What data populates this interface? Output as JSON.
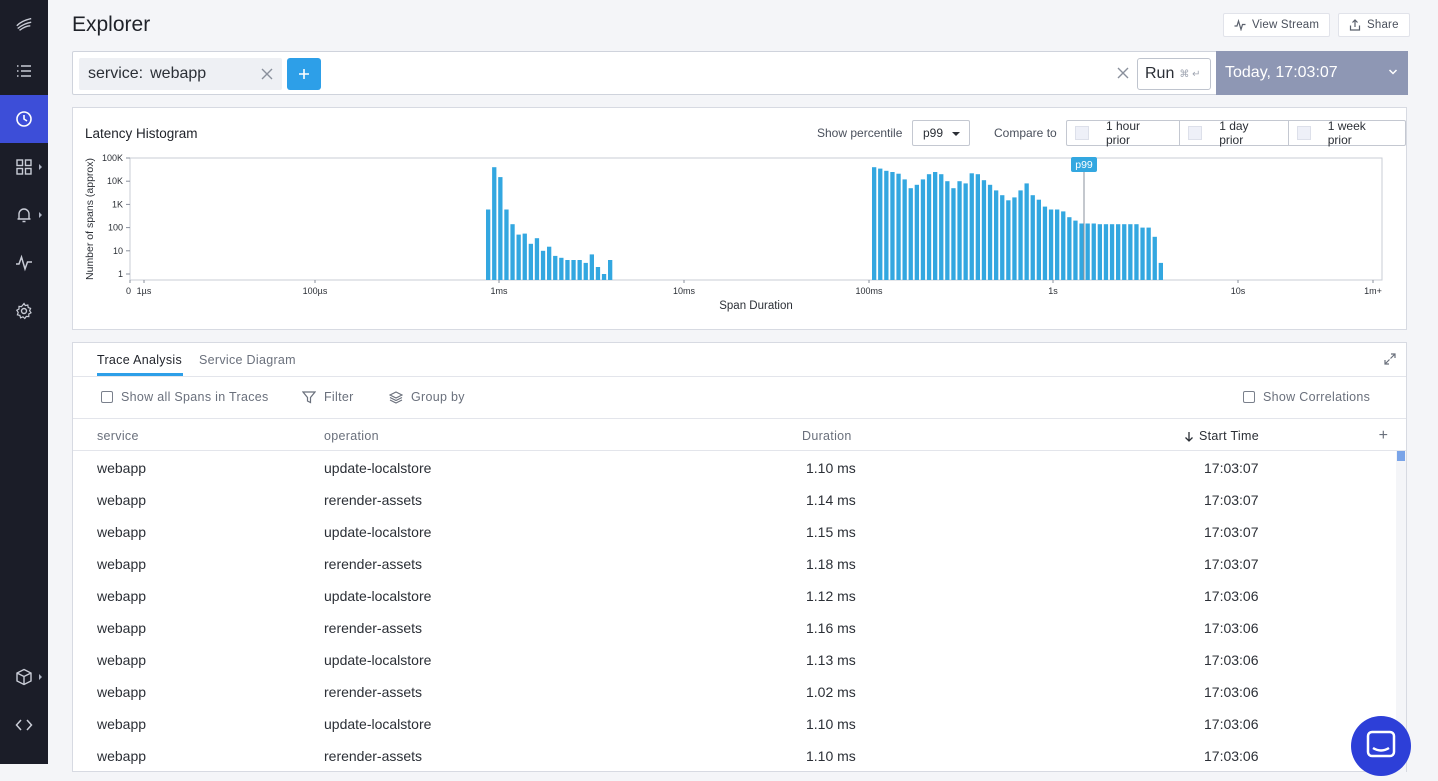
{
  "sidebar": {
    "items": [
      {
        "icon": "logo-icon"
      },
      {
        "icon": "list-icon"
      },
      {
        "icon": "clock-icon",
        "active": true
      },
      {
        "icon": "dashboard-grid-icon"
      },
      {
        "icon": "bell-icon"
      },
      {
        "icon": "pulse-icon"
      },
      {
        "icon": "gear-icon"
      },
      {
        "icon": "package-icon"
      },
      {
        "icon": "code-icon"
      }
    ]
  },
  "header": {
    "title": "Explorer",
    "view_stream_label": "View Stream",
    "share_label": "Share"
  },
  "query": {
    "chip_key": "service:",
    "chip_value": "webapp",
    "run_label": "Run",
    "run_shortcut": "⌘ ↵",
    "time_label": "Today, 17:03:07"
  },
  "histogram": {
    "title": "Latency Histogram",
    "show_percentile_label": "Show percentile",
    "percentile_value": "p99",
    "compare_label": "Compare to",
    "compare_options": [
      "1 hour prior",
      "1 day prior",
      "1 week prior"
    ],
    "marker_label": "p99",
    "bar_color": "#33a7e0"
  },
  "chart_data": {
    "type": "bar",
    "xlabel": "Span Duration",
    "ylabel": "Number of spans (approx)",
    "yscale": "log",
    "y_ticks": [
      "100K",
      "10K",
      "1K",
      "100",
      "10",
      "1"
    ],
    "x_ticks": [
      "0",
      "1µs",
      "100µs",
      "1ms",
      "10ms",
      "100ms",
      "1s",
      "10s",
      "1m+"
    ],
    "marker": {
      "label": "p99",
      "x": "1.6s"
    },
    "groups": [
      {
        "x_start": "800µs",
        "values": [
          600,
          40000,
          15000,
          600,
          140,
          50,
          55,
          20,
          35,
          10,
          15,
          6,
          5,
          4,
          4,
          4,
          3,
          7,
          2,
          1,
          4
        ]
      },
      {
        "x_start": "100ms",
        "values": [
          40000,
          35000,
          28000,
          25000,
          21000,
          12000,
          5000,
          7000,
          12000,
          20000,
          25000,
          20000,
          10000,
          5000,
          10000,
          8000,
          22000,
          20000,
          11000,
          7000,
          4000,
          2500,
          1500,
          2000,
          4000,
          8000,
          2500,
          1600,
          800,
          600,
          600,
          500,
          280,
          200,
          150,
          150,
          150,
          140,
          140,
          140,
          140,
          140,
          140,
          140,
          100,
          100,
          40,
          3
        ]
      }
    ]
  },
  "table": {
    "tabs": [
      "Trace Analysis",
      "Service Diagram"
    ],
    "show_all_label": "Show all Spans in Traces",
    "filter_label": "Filter",
    "group_by_label": "Group by",
    "correlations_label": "Show Correlations",
    "columns": [
      "service",
      "operation",
      "Duration",
      "Start Time"
    ],
    "rows": [
      {
        "service": "webapp",
        "operation": "update-localstore",
        "duration": "1.10 ms",
        "start": "17:03:07"
      },
      {
        "service": "webapp",
        "operation": "rerender-assets",
        "duration": "1.14 ms",
        "start": "17:03:07"
      },
      {
        "service": "webapp",
        "operation": "update-localstore",
        "duration": "1.15 ms",
        "start": "17:03:07"
      },
      {
        "service": "webapp",
        "operation": "rerender-assets",
        "duration": "1.18 ms",
        "start": "17:03:07"
      },
      {
        "service": "webapp",
        "operation": "update-localstore",
        "duration": "1.12 ms",
        "start": "17:03:06"
      },
      {
        "service": "webapp",
        "operation": "rerender-assets",
        "duration": "1.16 ms",
        "start": "17:03:06"
      },
      {
        "service": "webapp",
        "operation": "update-localstore",
        "duration": "1.13 ms",
        "start": "17:03:06"
      },
      {
        "service": "webapp",
        "operation": "rerender-assets",
        "duration": "1.02 ms",
        "start": "17:03:06"
      },
      {
        "service": "webapp",
        "operation": "update-localstore",
        "duration": "1.10 ms",
        "start": "17:03:06"
      },
      {
        "service": "webapp",
        "operation": "rerender-assets",
        "duration": "1.10 ms",
        "start": "17:03:06"
      }
    ]
  }
}
